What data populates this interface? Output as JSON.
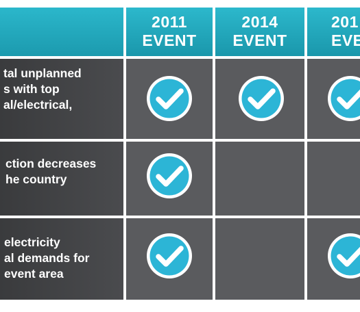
{
  "header": {
    "columns": [
      {
        "label": "2011\nEVENT"
      },
      {
        "label": "2014\nEVENT"
      },
      {
        "label": "201\nEVE"
      }
    ]
  },
  "rows": [
    {
      "label": "tal unplanned\ns with top\nal/electrical,",
      "checks": [
        true,
        true,
        true
      ]
    },
    {
      "label": "ction decreases\nhe country",
      "checks": [
        true,
        false,
        false
      ]
    },
    {
      "label": "electricity\nal demands for\nevent area",
      "checks": [
        true,
        false,
        true
      ]
    }
  ],
  "colors": {
    "header_teal": "#1fa3b7",
    "label_bg": "#404143",
    "cell_bg": "#5a5b5e",
    "check_fill": "#2cb5d6",
    "check_ring": "#ffffff"
  },
  "icons": {
    "check": "check-circle-icon"
  }
}
